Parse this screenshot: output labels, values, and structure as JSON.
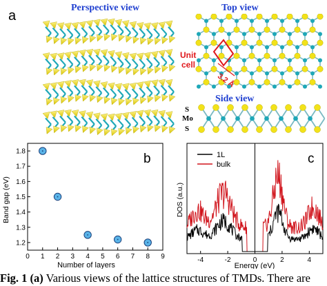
{
  "panel_a": {
    "letter": "a",
    "perspective_title": "Perspective view",
    "top_title": "Top view",
    "side_title": "Side view",
    "unit_cell_label_1": "Unit",
    "unit_cell_label_2": "cell",
    "lattice_constant": "3.2 Å",
    "side_labels": [
      "S",
      "Mo",
      "S"
    ],
    "colors": {
      "sulfur": "#f2e21a",
      "molybdenum": "#1fa8b8",
      "unit_cell": "#e0181c",
      "title": "#1f3fd0"
    }
  },
  "panel_b": {
    "letter": "b"
  },
  "panel_c": {
    "letter": "c"
  },
  "caption": {
    "label": "Fig. 1",
    "sublabel": "(a)",
    "text": " Various views of the lattice structures of TMDs. There are"
  },
  "chart_data": [
    {
      "type": "scatter",
      "panel": "b",
      "xlabel": "Number of layers",
      "ylabel": "Band gap (eV)",
      "xlim": [
        0,
        9
      ],
      "ylim": [
        1.15,
        1.85
      ],
      "xticks": [
        0,
        1,
        2,
        3,
        4,
        5,
        6,
        7,
        8,
        9
      ],
      "yticks": [
        1.2,
        1.3,
        1.4,
        1.5,
        1.6,
        1.7,
        1.8
      ],
      "x": [
        1,
        2,
        4,
        6,
        8
      ],
      "y": [
        1.8,
        1.5,
        1.25,
        1.22,
        1.2
      ],
      "marker_color": "#5ab4e8",
      "grid": false
    },
    {
      "type": "line",
      "panel": "c",
      "xlabel": "Energy (eV)",
      "ylabel": "DOS (a.u.)",
      "xlim": [
        -5,
        5
      ],
      "xticks": [
        -4,
        -2,
        0,
        2,
        4
      ],
      "legend_position": "top-left",
      "series": [
        {
          "name": "1L",
          "color": "#000000"
        },
        {
          "name": "bulk",
          "color": "#d0121a"
        }
      ]
    }
  ]
}
